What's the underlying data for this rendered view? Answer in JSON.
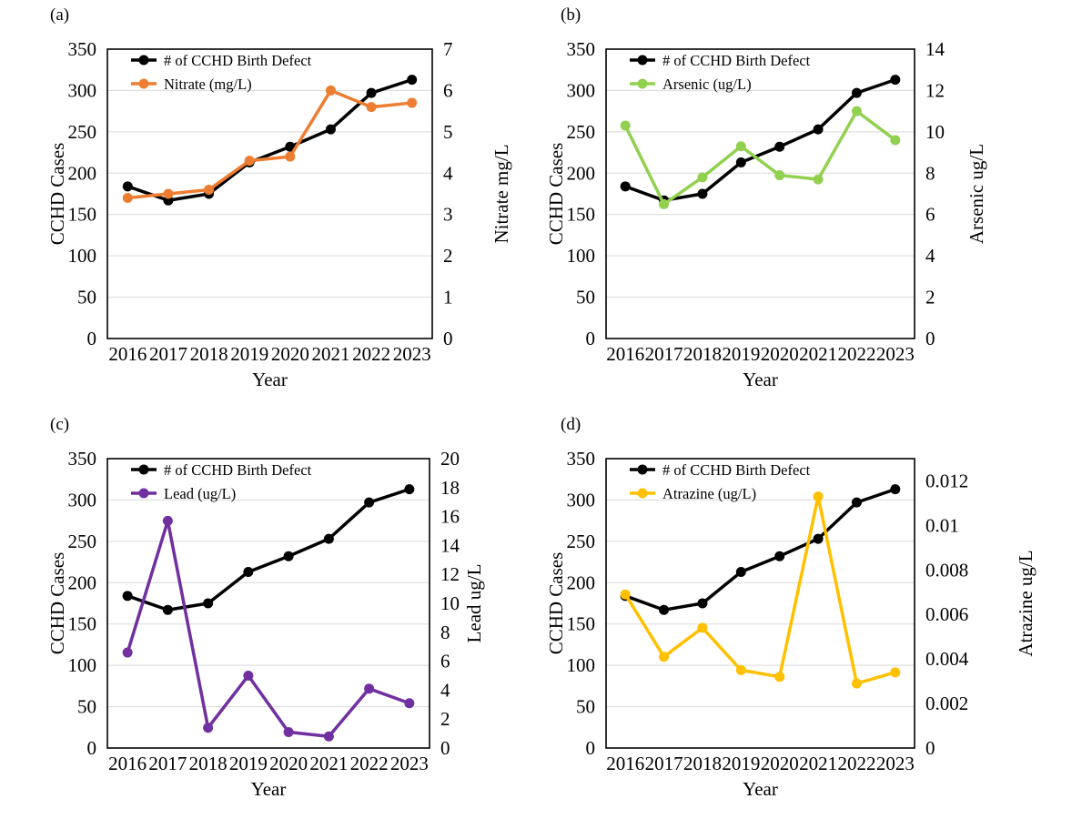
{
  "figure": {
    "background": "#ffffff",
    "grid_color": "#d9d9d9",
    "border_color": "#000000",
    "text_color": "#000000"
  },
  "chart_data": [
    {
      "panel_label": "(a)",
      "type": "line",
      "categories": [
        "2016",
        "2017",
        "2018",
        "2019",
        "2020",
        "2021",
        "2022",
        "2023"
      ],
      "xlabel": "Year",
      "grid": true,
      "legend_position": "top-left",
      "left_axis": {
        "title": "CCHD Cases",
        "min": 0,
        "max": 350,
        "ticks": [
          0,
          50,
          100,
          150,
          200,
          250,
          300,
          350
        ],
        "tick_labels": [
          "0",
          "50",
          "100",
          "150",
          "200",
          "250",
          "300",
          "350"
        ]
      },
      "right_axis": {
        "title": "Nitrate mg/L",
        "min": 0,
        "max": 7,
        "ticks": [
          0,
          1,
          2,
          3,
          4,
          5,
          6,
          7
        ],
        "tick_labels": [
          "0",
          "1",
          "2",
          "3",
          "4",
          "5",
          "6",
          "7"
        ]
      },
      "series": [
        {
          "name": "# of CCHD Birth Defect",
          "axis": "left",
          "color": "#000000",
          "values": [
            184,
            167,
            175,
            213,
            232,
            253,
            297,
            313
          ]
        },
        {
          "name": "Nitrate (mg/L)",
          "axis": "right",
          "color": "#ED7D31",
          "values": [
            3.4,
            3.5,
            3.6,
            4.3,
            4.4,
            6.0,
            5.6,
            5.7
          ]
        }
      ]
    },
    {
      "panel_label": "(b)",
      "type": "line",
      "categories": [
        "2016",
        "2017",
        "2018",
        "2019",
        "2020",
        "2021",
        "2022",
        "2023"
      ],
      "xlabel": "Year",
      "grid": true,
      "legend_position": "top-left",
      "left_axis": {
        "title": "CCHD Cases",
        "min": 0,
        "max": 350,
        "ticks": [
          0,
          50,
          100,
          150,
          200,
          250,
          300,
          350
        ],
        "tick_labels": [
          "0",
          "50",
          "100",
          "150",
          "200",
          "250",
          "300",
          "350"
        ]
      },
      "right_axis": {
        "title": "Arsenic ug/L",
        "min": 0,
        "max": 14,
        "ticks": [
          0,
          2,
          4,
          6,
          8,
          10,
          12,
          14
        ],
        "tick_labels": [
          "0",
          "2",
          "4",
          "6",
          "8",
          "10",
          "12",
          "14"
        ]
      },
      "series": [
        {
          "name": "# of CCHD Birth Defect",
          "axis": "left",
          "color": "#000000",
          "values": [
            184,
            167,
            175,
            213,
            232,
            253,
            297,
            313
          ]
        },
        {
          "name": "Arsenic (ug/L)",
          "axis": "right",
          "color": "#92D050",
          "values": [
            10.3,
            6.5,
            7.8,
            9.3,
            7.9,
            7.7,
            11.0,
            9.6
          ]
        }
      ]
    },
    {
      "panel_label": "(c)",
      "type": "line",
      "categories": [
        "2016",
        "2017",
        "2018",
        "2019",
        "2020",
        "2021",
        "2022",
        "2023"
      ],
      "xlabel": "Year",
      "grid": true,
      "legend_position": "top-left",
      "left_axis": {
        "title": "CCHD Cases",
        "min": 0,
        "max": 350,
        "ticks": [
          0,
          50,
          100,
          150,
          200,
          250,
          300,
          350
        ],
        "tick_labels": [
          "0",
          "50",
          "100",
          "150",
          "200",
          "250",
          "300",
          "350"
        ]
      },
      "right_axis": {
        "title": "Lead ug/L",
        "min": 0,
        "max": 20,
        "ticks": [
          0,
          2,
          4,
          6,
          8,
          10,
          12,
          14,
          16,
          18,
          20
        ],
        "tick_labels": [
          "0",
          "2",
          "4",
          "6",
          "8",
          "10",
          "12",
          "14",
          "16",
          "18",
          "20"
        ]
      },
      "series": [
        {
          "name": "# of CCHD Birth Defect",
          "axis": "left",
          "color": "#000000",
          "values": [
            184,
            167,
            175,
            213,
            232,
            253,
            297,
            313
          ]
        },
        {
          "name": "Lead (ug/L)",
          "axis": "right",
          "color": "#7030A0",
          "values": [
            6.6,
            15.7,
            1.4,
            5.0,
            1.1,
            0.8,
            4.1,
            3.1
          ]
        }
      ]
    },
    {
      "panel_label": "(d)",
      "type": "line",
      "categories": [
        "2016",
        "2017",
        "2018",
        "2019",
        "2020",
        "2021",
        "2022",
        "2023"
      ],
      "xlabel": "Year",
      "grid": true,
      "legend_position": "top-left",
      "left_axis": {
        "title": "CCHD Cases",
        "min": 0,
        "max": 350,
        "ticks": [
          0,
          50,
          100,
          150,
          200,
          250,
          300,
          350
        ],
        "tick_labels": [
          "0",
          "50",
          "100",
          "150",
          "200",
          "250",
          "300",
          "350"
        ]
      },
      "right_axis": {
        "title": "Atrazine ug/L",
        "min": 0,
        "max": 0.013,
        "ticks": [
          0,
          0.002,
          0.004,
          0.006,
          0.008,
          0.01,
          0.012
        ],
        "tick_labels": [
          "0",
          "0.002",
          "0.004",
          "0.006",
          "0.008",
          "0.01",
          "0.012"
        ]
      },
      "series": [
        {
          "name": "# of CCHD Birth Defect",
          "axis": "left",
          "color": "#000000",
          "values": [
            184,
            167,
            175,
            213,
            232,
            253,
            297,
            313
          ]
        },
        {
          "name": "Atrazine (ug/L)",
          "axis": "right",
          "color": "#FFC000",
          "values": [
            0.0069,
            0.0041,
            0.0054,
            0.0035,
            0.0032,
            0.0113,
            0.0029,
            0.0034
          ]
        }
      ]
    }
  ]
}
